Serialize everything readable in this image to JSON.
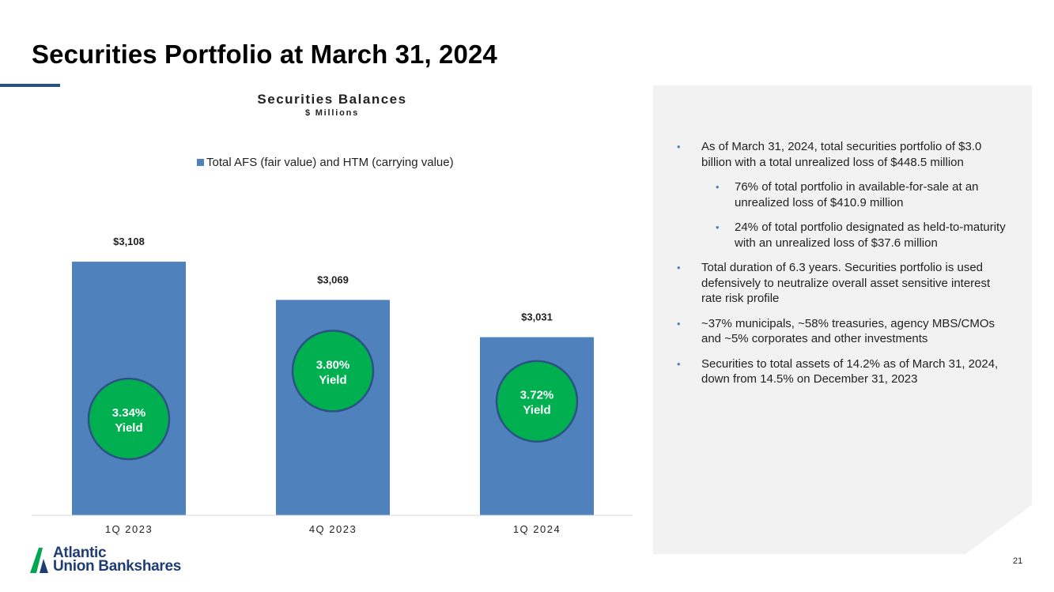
{
  "title": "Securities Portfolio at March 31, 2024",
  "chart_data": {
    "type": "bar",
    "title": "Securities Balances",
    "subtitle": "$ Millions",
    "legend": "Total AFS (fair value) and HTM (carrying value)",
    "categories": [
      "1Q 2023",
      "4Q 2023",
      "1Q 2024"
    ],
    "values": [
      3108,
      3069,
      3031
    ],
    "value_labels": [
      "$3,108",
      "$3,069",
      "$3,031"
    ],
    "yields": [
      "3.34%",
      "3.80%",
      "3.72%"
    ],
    "yield_label": "Yield",
    "grid": false,
    "legend_position": "top",
    "bar_color": "#4f81bd",
    "badge_color": "#00b050",
    "badge_border": "#2b5283"
  },
  "panel": {
    "bullets": [
      {
        "level": 1,
        "text": "As of March 31, 2024, total securities portfolio of $3.0 billion with a total unrealized loss of $448.5 million"
      },
      {
        "level": 2,
        "text": "76% of total portfolio in available-for-sale at an unrealized loss of $410.9 million"
      },
      {
        "level": 2,
        "text": "24% of total portfolio designated as held-to-maturity with an unrealized loss of $37.6 million"
      },
      {
        "level": 1,
        "text": "Total duration of 6.3 years. Securities portfolio is used defensively to neutralize overall asset sensitive interest rate risk profile"
      },
      {
        "level": 1,
        "text": "~37% municipals, ~58% treasuries, agency MBS/CMOs and ~5% corporates and other investments"
      },
      {
        "level": 1,
        "text": "Securities to total assets of 14.2% as of March 31, 2024, down from 14.5% on December 31, 2023"
      }
    ],
    "bullet_glyph": "•"
  },
  "logo": {
    "line1": "Atlantic",
    "line2": "Union Bankshares"
  },
  "page_number": "21"
}
